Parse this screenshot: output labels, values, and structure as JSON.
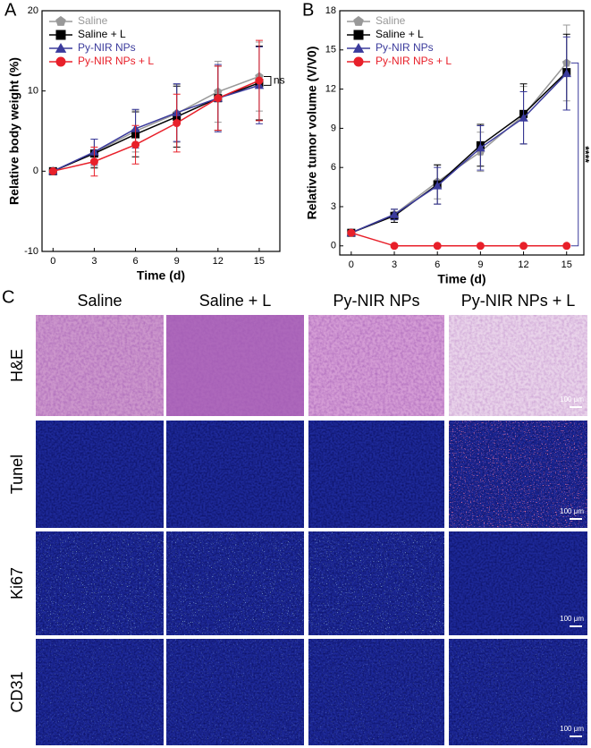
{
  "chart_data": [
    {
      "type": "line",
      "panel_label": "A",
      "ylabel": "Relative body weight (%)",
      "xlabel": "Time (d)",
      "x": [
        0,
        3,
        6,
        9,
        12,
        15
      ],
      "xlim": [
        -0.8,
        16.5
      ],
      "xticks": [
        0,
        3,
        6,
        9,
        12,
        15
      ],
      "ylim": [
        -10,
        20
      ],
      "yticks": [
        -10,
        0,
        10,
        20
      ],
      "legend": "upper left",
      "annotation": "ns",
      "series": [
        {
          "name": "Saline",
          "color": "#999999",
          "marker": "pentagon",
          "values": [
            0,
            2.3,
            5.0,
            7.2,
            9.9,
            11.8
          ],
          "errors": [
            0,
            1.7,
            2.6,
            3.6,
            3.8,
            4.3
          ]
        },
        {
          "name": "Saline + L",
          "color": "#000000",
          "marker": "square",
          "values": [
            0,
            2.2,
            4.6,
            6.8,
            9.1,
            11.0
          ],
          "errors": [
            0,
            1.8,
            2.8,
            3.8,
            4.0,
            4.6
          ]
        },
        {
          "name": "Py-NIR NPs",
          "color": "#3b3b9c",
          "marker": "triangle",
          "values": [
            0,
            2.4,
            5.3,
            7.3,
            9.1,
            10.7
          ],
          "errors": [
            0,
            1.6,
            2.4,
            3.6,
            4.2,
            4.8
          ]
        },
        {
          "name": "Py-NIR NPs + L",
          "color": "#e8202a",
          "marker": "circle",
          "values": [
            0,
            1.2,
            3.3,
            6.0,
            9.1,
            11.3
          ],
          "errors": [
            0,
            1.8,
            2.4,
            3.6,
            4.0,
            5.0
          ]
        }
      ]
    },
    {
      "type": "line",
      "panel_label": "B",
      "ylabel": "Relative tumor volume (V/V0)",
      "xlabel": "Time (d)",
      "x": [
        0,
        3,
        6,
        9,
        12,
        15
      ],
      "xlim": [
        -0.8,
        16.2
      ],
      "xticks": [
        0,
        3,
        6,
        9,
        12,
        15
      ],
      "ylim": [
        -0.7,
        18
      ],
      "yticks": [
        0,
        3,
        6,
        9,
        12,
        15,
        18
      ],
      "legend": "upper left",
      "annotation": "****",
      "series": [
        {
          "name": "Saline",
          "color": "#999999",
          "marker": "pentagon",
          "values": [
            1,
            2.4,
            4.9,
            7.2,
            10.0,
            14.0
          ],
          "errors": [
            0,
            0.4,
            1.3,
            1.5,
            2.2,
            2.9
          ]
        },
        {
          "name": "Saline + L",
          "color": "#000000",
          "marker": "square",
          "values": [
            1,
            2.3,
            4.7,
            7.7,
            10.1,
            13.3
          ],
          "errors": [
            0,
            0.5,
            1.5,
            1.6,
            2.3,
            2.9
          ]
        },
        {
          "name": "Py-NIR NPs",
          "color": "#3b3b9c",
          "marker": "triangle",
          "values": [
            1,
            2.4,
            4.6,
            7.5,
            9.8,
            13.2
          ],
          "errors": [
            0,
            0.4,
            1.4,
            1.7,
            2.0,
            2.8
          ]
        },
        {
          "name": "Py-NIR NPs + L",
          "color": "#e8202a",
          "marker": "circle",
          "values": [
            1,
            0,
            0,
            0,
            0,
            0
          ],
          "errors": [
            0,
            0,
            0,
            0,
            0,
            0
          ]
        }
      ]
    }
  ],
  "panel_c": {
    "label": "C",
    "columns": [
      "Saline",
      "Saline + L",
      "Py-NIR NPs",
      "Py-NIR NPs + L"
    ],
    "rows": [
      "H&E",
      "Tunel",
      "Ki67",
      "CD31"
    ],
    "scale_bar": "100 μm"
  }
}
